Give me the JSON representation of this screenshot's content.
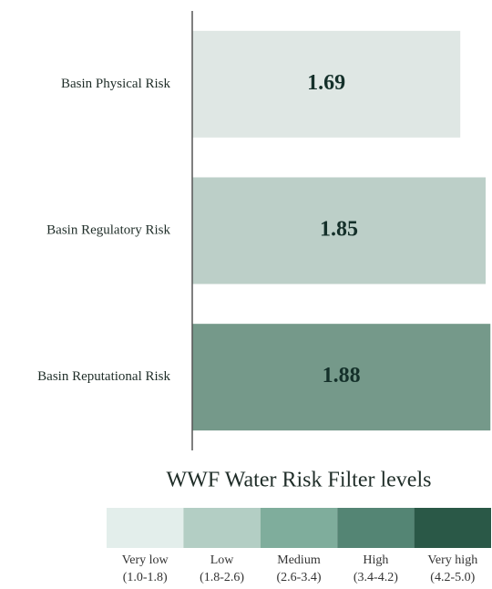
{
  "chart_data": {
    "type": "bar",
    "orientation": "horizontal",
    "categories": [
      "Basin Physical Risk",
      "Basin Regulatory Risk",
      "Basin Reputational Risk"
    ],
    "values": [
      1.69,
      1.85,
      1.88
    ],
    "colors": [
      "#dfe7e4",
      "#bccfc8",
      "#75998a"
    ],
    "xlim": [
      0,
      1.89
    ],
    "legend": {
      "title": "WWF Water Risk Filter levels",
      "levels": [
        {
          "label": "Very low",
          "range": "(1.0-1.8)",
          "color": "#e3eeeb"
        },
        {
          "label": "Low",
          "range": "(1.8-2.6)",
          "color": "#b3cec4"
        },
        {
          "label": "Medium",
          "range": "(2.6-3.4)",
          "color": "#7fad9c"
        },
        {
          "label": "High",
          "range": "(3.4-4.2)",
          "color": "#548574"
        },
        {
          "label": "Very high",
          "range": "(4.2-5.0)",
          "color": "#2a5847"
        }
      ]
    }
  }
}
